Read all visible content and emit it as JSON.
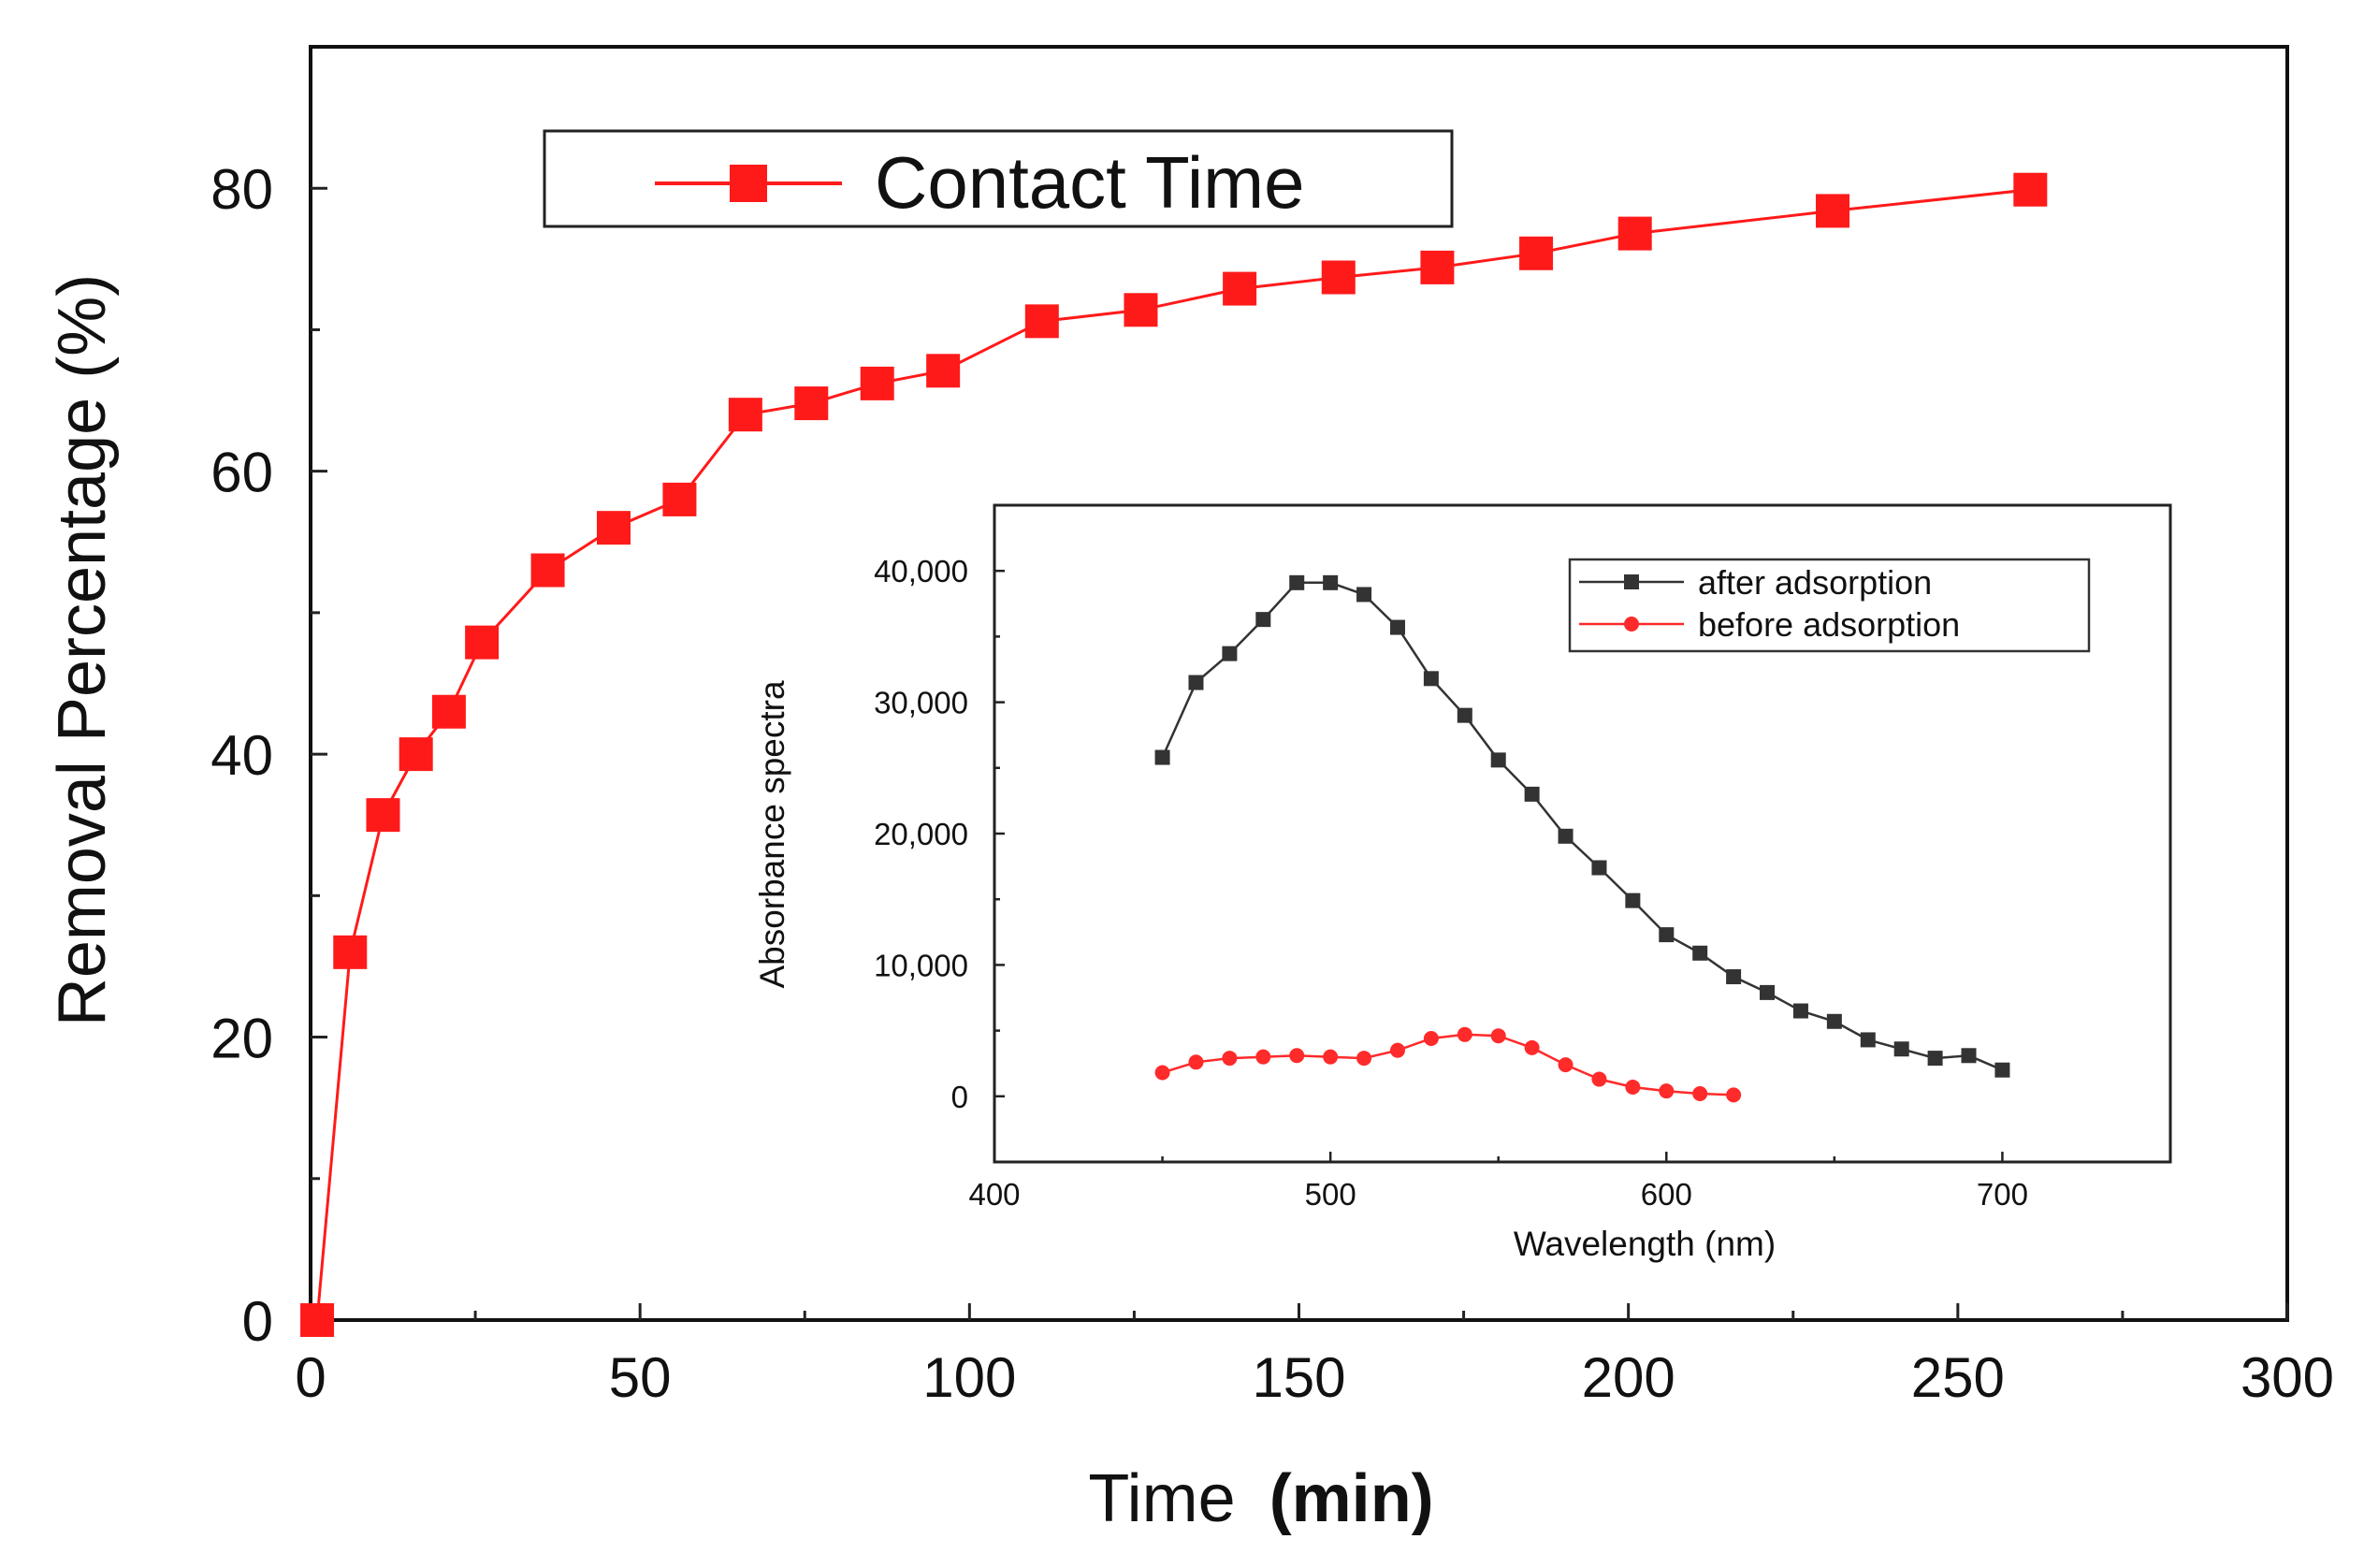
{
  "chart_data": [
    {
      "id": "main",
      "type": "line",
      "title": "",
      "xlabel": "Time",
      "xlabel_bold": "(min)",
      "ylabel": "Removal Percentage (%)",
      "xlim": [
        0,
        300
      ],
      "ylim": [
        0,
        90
      ],
      "xticks": [
        0,
        50,
        100,
        150,
        200,
        250,
        300
      ],
      "yticks": [
        0,
        20,
        40,
        60,
        80
      ],
      "legend": {
        "position": "top-left",
        "entries": [
          "Contact Time"
        ]
      },
      "series": [
        {
          "name": "Contact Time",
          "color": "#ff1a1a",
          "marker": "square",
          "x": [
            1,
            6,
            11,
            16,
            21,
            26,
            36,
            46,
            56,
            66,
            76,
            86,
            96,
            111,
            126,
            141,
            156,
            171,
            186,
            201,
            231,
            261
          ],
          "y": [
            0,
            26,
            35.7,
            40,
            43,
            47.9,
            53,
            56,
            58,
            64,
            64.8,
            66.2,
            67.1,
            70.6,
            71.4,
            72.9,
            73.7,
            74.4,
            75.4,
            76.8,
            78.4,
            79.9
          ]
        }
      ]
    },
    {
      "id": "inset",
      "type": "line",
      "title": "",
      "xlabel": "Wavelength (nm)",
      "ylabel": "Absorbance spectra",
      "xlim": [
        400,
        750
      ],
      "ylim": [
        -5000,
        45000
      ],
      "xticks": [
        400,
        500,
        600,
        700
      ],
      "yticks": [
        0,
        10000,
        20000,
        30000,
        40000
      ],
      "ytick_labels": [
        "0",
        "10,000",
        "20,000",
        "30,000",
        "40,000"
      ],
      "legend": {
        "position": "top-right",
        "entries": [
          "after adsorption",
          "before adsorption"
        ]
      },
      "series": [
        {
          "name": "after adsorption",
          "color": "#333333",
          "marker": "square",
          "x": [
            450,
            460,
            470,
            480,
            490,
            500,
            510,
            520,
            530,
            540,
            550,
            560,
            570,
            580,
            590,
            600,
            610,
            620,
            630,
            640,
            650,
            660,
            670,
            680,
            690,
            700
          ],
          "y": [
            25800,
            31500,
            33700,
            36300,
            39100,
            39100,
            38200,
            35700,
            31800,
            29000,
            25600,
            23000,
            19800,
            17400,
            14900,
            12300,
            10900,
            9100,
            7900,
            6500,
            5700,
            4300,
            3600,
            2900,
            3100,
            2000
          ]
        },
        {
          "name": "before adsorption",
          "color": "#ff2a2a",
          "marker": "circle",
          "x": [
            450,
            460,
            470,
            480,
            490,
            500,
            510,
            520,
            530,
            540,
            550,
            560,
            570,
            580,
            590,
            600,
            610,
            620
          ],
          "y": [
            1800,
            2600,
            2900,
            3000,
            3100,
            3000,
            2900,
            3500,
            4400,
            4700,
            4600,
            3700,
            2400,
            1300,
            700,
            400,
            200,
            100
          ]
        }
      ]
    }
  ]
}
